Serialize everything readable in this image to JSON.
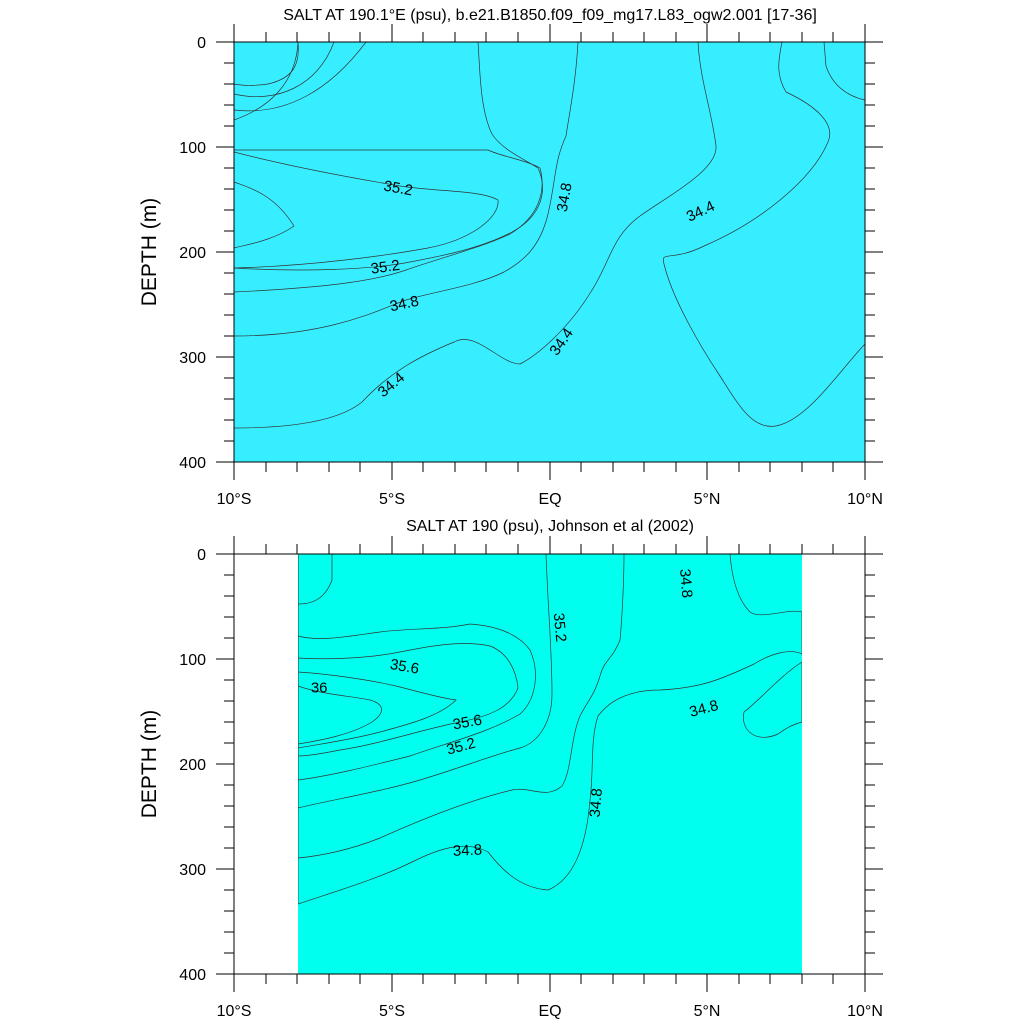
{
  "chart_data": [
    {
      "type": "contour",
      "title": "SALT AT 190.1°E (psu), b.e21.B1850.f09_f09_mg17.L83_ogw2.001 [17-36]",
      "ylabel": "DEPTH (m)",
      "xlabel": "",
      "x_ticks": [
        {
          "value": -10,
          "label": "10°S"
        },
        {
          "value": -5,
          "label": "5°S"
        },
        {
          "value": 0,
          "label": "EQ"
        },
        {
          "value": 5,
          "label": "5°N"
        },
        {
          "value": 10,
          "label": "10°N"
        }
      ],
      "y_ticks": [
        0,
        100,
        200,
        300,
        400
      ],
      "xlim": [
        -10,
        10
      ],
      "ylim": [
        0,
        400
      ],
      "y_inverted": true,
      "levels": [
        34.0,
        34.2,
        34.4,
        34.6,
        34.8,
        35.0,
        35.2,
        35.4,
        35.6
      ],
      "colors": {
        "34.0": "#00b8ff",
        "34.2": "#00d8ff",
        "34.4": "#36eeff",
        "34.6": "#00ffee",
        "34.8": "#00ffbf",
        "35.0": "#00f090",
        "35.2": "#00ff3c",
        "35.4": "#84ff00",
        "35.6": "#ffff00"
      },
      "contour_labels": [
        {
          "text": "35.2",
          "x": -4.8,
          "y": 140,
          "angle": 10
        },
        {
          "text": "34.8",
          "x": 0.5,
          "y": 148,
          "angle": -80
        },
        {
          "text": "34.4",
          "x": 4.8,
          "y": 162,
          "angle": -25
        },
        {
          "text": "35.2",
          "x": -5.2,
          "y": 215,
          "angle": -8
        },
        {
          "text": "34.8",
          "x": -4.6,
          "y": 250,
          "angle": -12
        },
        {
          "text": "34.4",
          "x": 0.4,
          "y": 286,
          "angle": -55
        },
        {
          "text": "34.4",
          "x": -5.0,
          "y": 327,
          "angle": -40
        }
      ]
    },
    {
      "type": "contour",
      "title": "SALT AT 190 (psu), Johnson et al (2002)",
      "ylabel": "DEPTH (m)",
      "xlabel": "",
      "x_ticks": [
        {
          "value": -10,
          "label": "10°S"
        },
        {
          "value": -5,
          "label": "5°S"
        },
        {
          "value": 0,
          "label": "EQ"
        },
        {
          "value": 5,
          "label": "5°N"
        },
        {
          "value": 10,
          "label": "10°N"
        }
      ],
      "y_ticks": [
        0,
        100,
        200,
        300,
        400
      ],
      "xlim": [
        -10,
        10
      ],
      "ylim": [
        0,
        400
      ],
      "y_inverted": true,
      "data_extent_x": [
        -8,
        8
      ],
      "levels": [
        34.6,
        34.8,
        35.0,
        35.2,
        35.4,
        35.6,
        35.8,
        36.0
      ],
      "colors": {
        "34.6": "#00ffee",
        "34.8": "#00ffbf",
        "35.0": "#00f090",
        "35.2": "#00ff3c",
        "35.4": "#84ff00",
        "35.6": "#ffff00",
        "35.8": "#ffe21e",
        "36.0": "#ffc83c"
      },
      "contour_labels": [
        {
          "text": "35.6",
          "x": -4.6,
          "y": 108,
          "angle": 10
        },
        {
          "text": "36",
          "x": -7.3,
          "y": 128,
          "angle": 0
        },
        {
          "text": "35.2",
          "x": 0.3,
          "y": 70,
          "angle": 85
        },
        {
          "text": "34.8",
          "x": 4.3,
          "y": 28,
          "angle": 85
        },
        {
          "text": "34.8",
          "x": 4.9,
          "y": 148,
          "angle": -15
        },
        {
          "text": "35.6",
          "x": -2.6,
          "y": 161,
          "angle": -10
        },
        {
          "text": "35.2",
          "x": -2.8,
          "y": 184,
          "angle": -15
        },
        {
          "text": "34.8",
          "x": 1.5,
          "y": 237,
          "angle": -85
        },
        {
          "text": "34.8",
          "x": -2.6,
          "y": 283,
          "angle": -3
        }
      ]
    }
  ]
}
